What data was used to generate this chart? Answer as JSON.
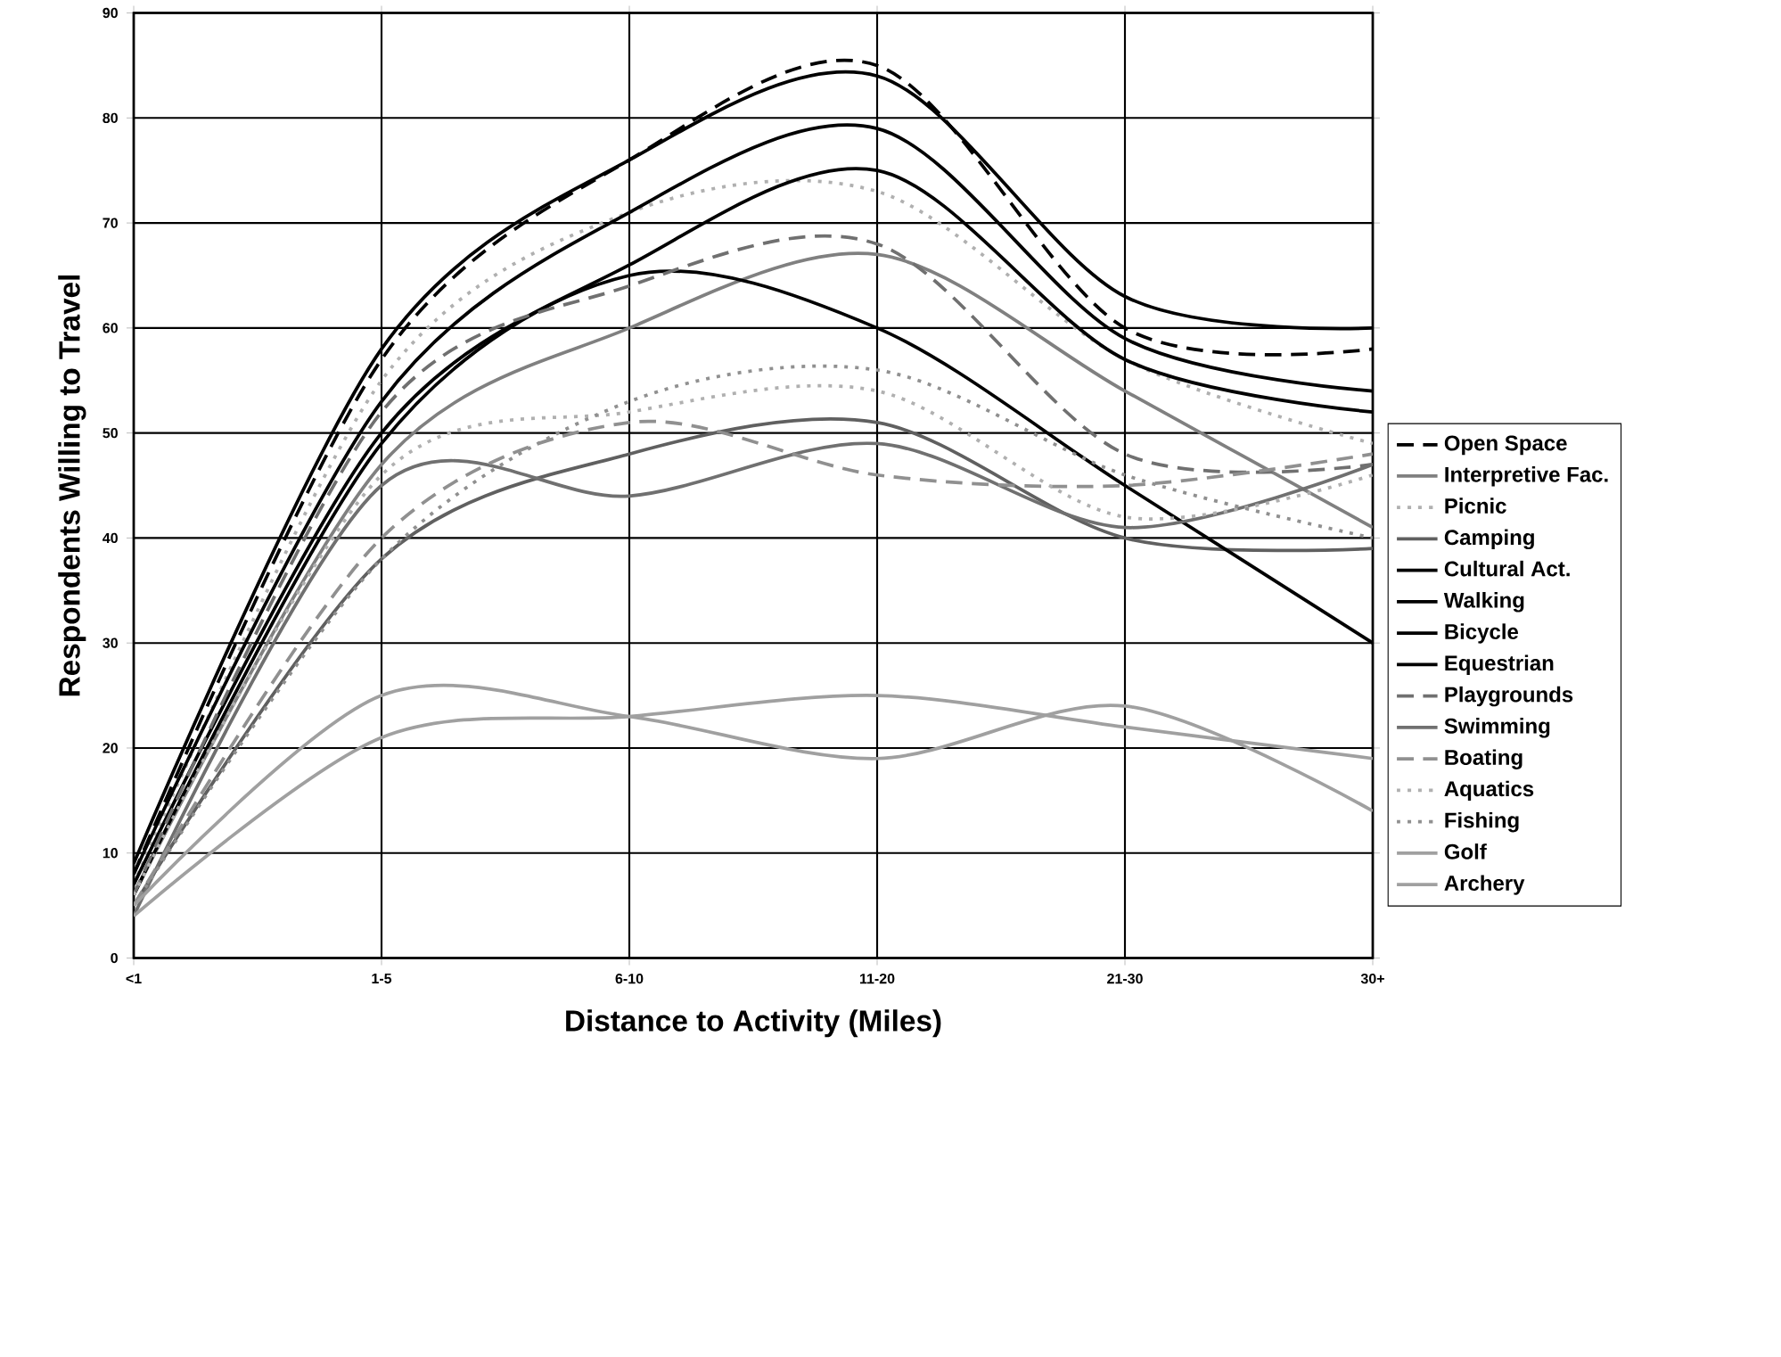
{
  "chart_data": {
    "type": "line",
    "xlabel": "Distance to Activity (Miles)",
    "ylabel": "Respondents Willing to Travel",
    "categories": [
      "<1",
      "1-5",
      "6-10",
      "11-20",
      "21-30",
      "30+"
    ],
    "ylim": [
      0,
      90
    ],
    "yticks": [
      0,
      10,
      20,
      30,
      40,
      50,
      60,
      70,
      80,
      90
    ],
    "grid": true,
    "legend": "right",
    "marker": "none",
    "series": [
      {
        "name": "Open Space",
        "color": "#000000",
        "line_style": "dashed",
        "values": [
          8,
          57,
          76,
          85,
          60,
          58
        ]
      },
      {
        "name": "Interpretive Fac.",
        "color": "#808080",
        "line_style": "solid",
        "values": [
          6,
          47,
          60,
          67,
          54,
          41
        ]
      },
      {
        "name": "Picnic",
        "color": "#b0b0b0",
        "line_style": "dotted",
        "values": [
          7,
          55,
          71,
          73,
          57,
          49
        ]
      },
      {
        "name": "Camping",
        "color": "#606060",
        "line_style": "solid",
        "values": [
          5,
          38,
          48,
          51,
          40,
          39
        ]
      },
      {
        "name": "Cultural Act.",
        "color": "#000000",
        "line_style": "solid",
        "values": [
          9,
          58,
          76,
          84,
          63,
          60
        ]
      },
      {
        "name": "Walking",
        "color": "#000000",
        "line_style": "solid",
        "values": [
          8,
          53,
          71,
          79,
          59,
          54
        ]
      },
      {
        "name": "Bicycle",
        "color": "#000000",
        "line_style": "solid",
        "values": [
          7,
          50,
          66,
          75,
          57,
          52
        ]
      },
      {
        "name": "Equestrian",
        "color": "#000000",
        "line_style": "solid",
        "values": [
          6,
          49,
          65,
          60,
          45,
          30
        ]
      },
      {
        "name": "Playgrounds",
        "color": "#707070",
        "line_style": "dashed",
        "values": [
          6,
          52,
          64,
          68,
          48,
          47
        ]
      },
      {
        "name": "Swimming",
        "color": "#707070",
        "line_style": "solid",
        "values": [
          4,
          45,
          44,
          49,
          41,
          47
        ]
      },
      {
        "name": "Boating",
        "color": "#909090",
        "line_style": "dashed",
        "values": [
          5,
          40,
          51,
          46,
          45,
          48
        ]
      },
      {
        "name": "Aquatics",
        "color": "#b0b0b0",
        "line_style": "dotted",
        "values": [
          6,
          46,
          52,
          54,
          42,
          46
        ]
      },
      {
        "name": "Fishing",
        "color": "#909090",
        "line_style": "dotted",
        "values": [
          5,
          38,
          53,
          56,
          46,
          40
        ]
      },
      {
        "name": "Golf",
        "color": "#a0a0a0",
        "line_style": "solid",
        "values": [
          5,
          25,
          23,
          19,
          24,
          14
        ]
      },
      {
        "name": "Archery",
        "color": "#a0a0a0",
        "line_style": "solid",
        "values": [
          4,
          21,
          23,
          25,
          22,
          19
        ]
      }
    ]
  }
}
